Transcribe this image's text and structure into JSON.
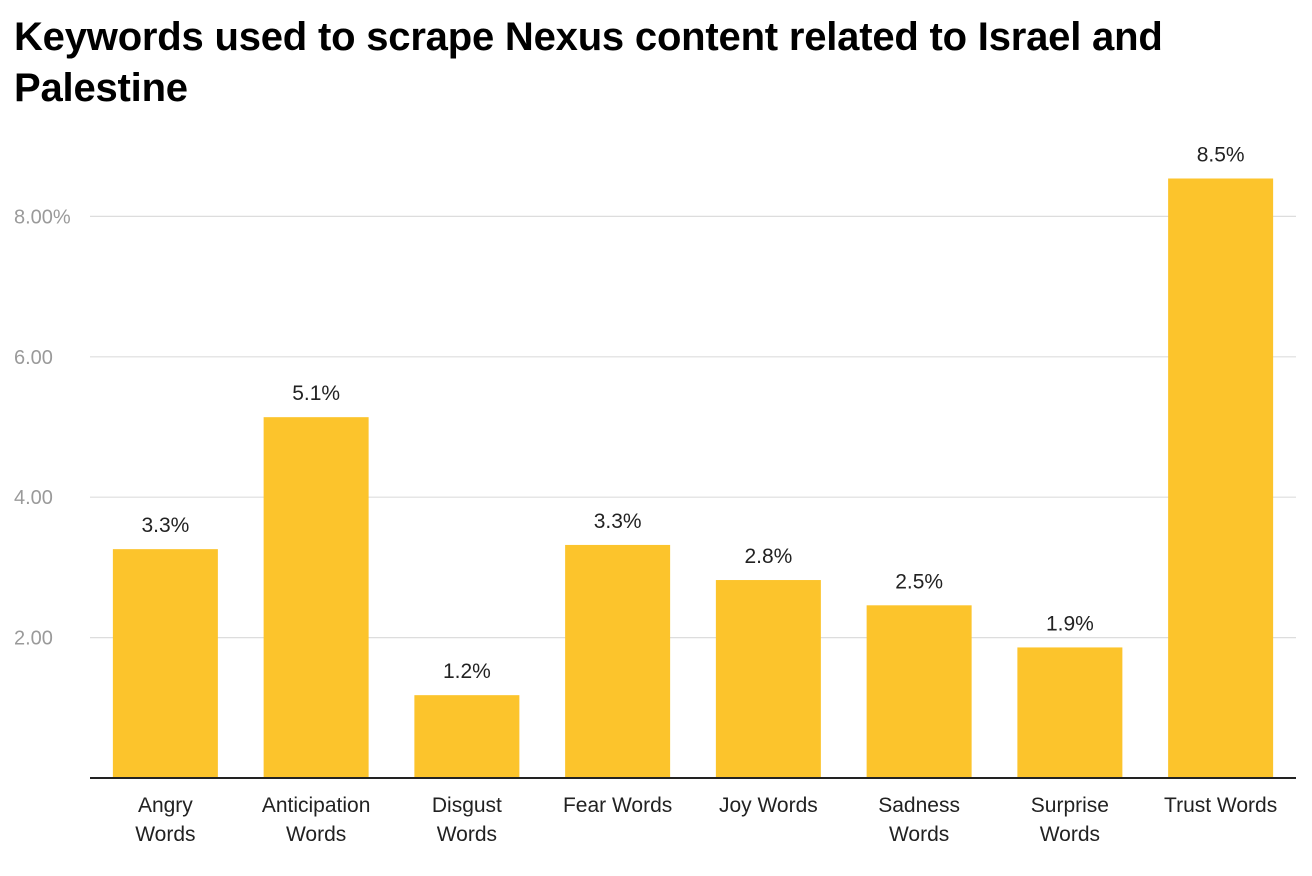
{
  "chart_data": {
    "type": "bar",
    "title": "Keywords used to scrape Nexus content related to Israel and Palestine",
    "categories": [
      [
        "Angry",
        "Words"
      ],
      [
        "Anticipation",
        "Words"
      ],
      [
        "Disgust",
        "Words"
      ],
      [
        "Fear Words"
      ],
      [
        "Joy Words"
      ],
      [
        "Sadness",
        "Words"
      ],
      [
        "Surprise",
        "Words"
      ],
      [
        "Trust Words"
      ]
    ],
    "values": [
      3.26,
      5.14,
      1.18,
      3.32,
      2.82,
      2.46,
      1.86,
      8.54
    ],
    "data_labels": [
      "3.3%",
      "5.1%",
      "1.2%",
      "3.3%",
      "2.8%",
      "2.5%",
      "1.9%",
      "8.5%"
    ],
    "y_ticks": [
      {
        "value": 2,
        "label": "2.00"
      },
      {
        "value": 4,
        "label": "4.00"
      },
      {
        "value": 6,
        "label": "6.00"
      },
      {
        "value": 8,
        "label": "8.00%"
      }
    ],
    "ylim": [
      0,
      9
    ],
    "xlabel": "",
    "ylabel": "",
    "grid": true,
    "legend": "none",
    "bar_color": "#fcc42c"
  }
}
